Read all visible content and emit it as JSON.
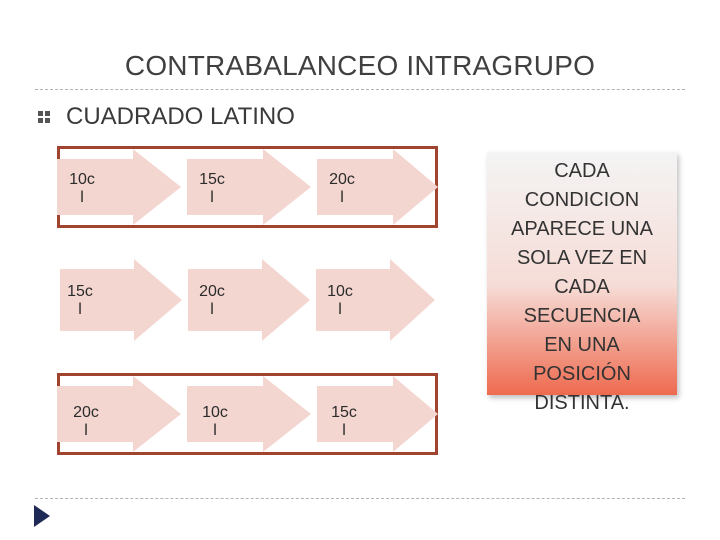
{
  "title": "CONTRABALANCEO INTRAGRUPO",
  "bullet": {
    "icon": "wingding-bullet-icon",
    "text": "CUADRADO LATINO"
  },
  "rows": [
    {
      "cells": [
        {
          "line1": "10c",
          "line2": "l"
        },
        {
          "line1": "15c",
          "line2": "l"
        },
        {
          "line1": "20c",
          "line2": "l"
        }
      ]
    },
    {
      "cells": [
        {
          "line1": "15c",
          "line2": "l"
        },
        {
          "line1": "20c",
          "line2": "l"
        },
        {
          "line1": "10c",
          "line2": "l"
        }
      ]
    },
    {
      "cells": [
        {
          "line1": "20c",
          "line2": "l"
        },
        {
          "line1": "10c",
          "line2": "l"
        },
        {
          "line1": "15c",
          "line2": "l"
        }
      ]
    }
  ],
  "callout": {
    "text": "CADA\nCONDICION\nAPARECE UNA\nSOLA VEZ EN\nCADA\nSECUENCIA\nEN UNA\nPOSICIÓN\nDISTINTA."
  },
  "colors": {
    "accent": "#a0442f",
    "chevron": "#f4d6d0",
    "callout_bottom": "#ee6a4f"
  },
  "nav": {
    "icon": "next-slide-arrow-icon"
  }
}
